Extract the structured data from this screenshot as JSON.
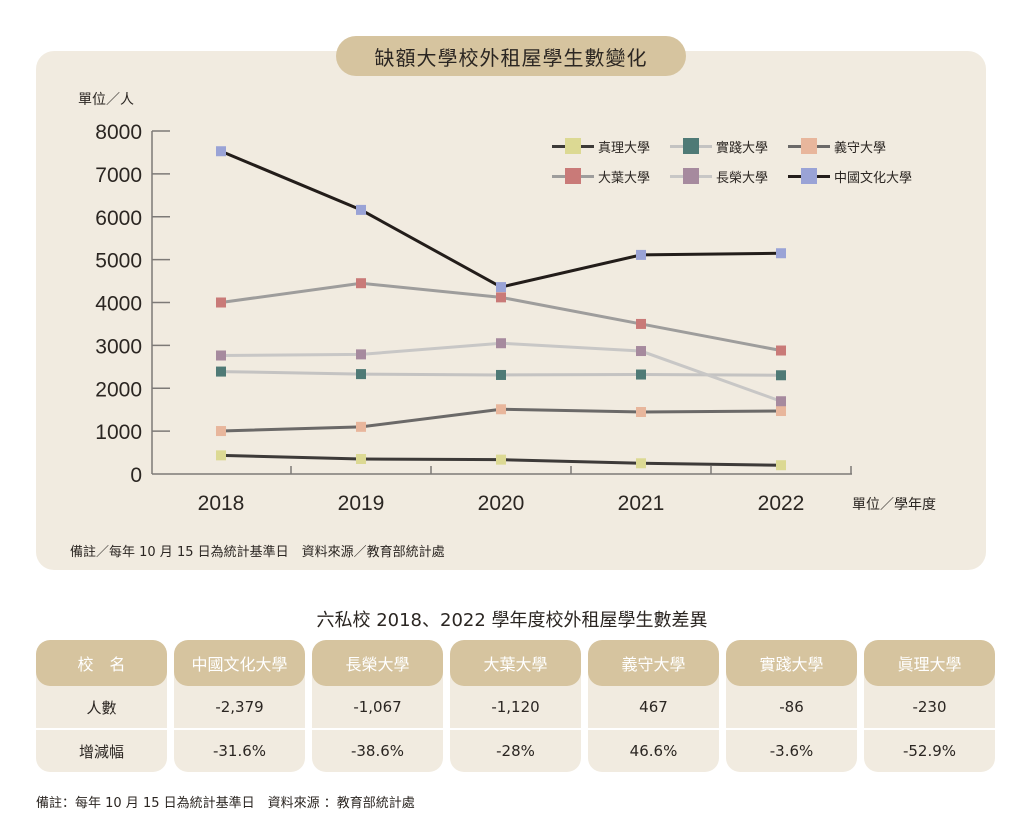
{
  "chart_title": "缺額大學校外租屋學生數變化",
  "y_unit": "單位／人",
  "x_unit": "單位／學年度",
  "note": "備註／每年 10 月 15 日為統計基準日　資料來源／教育部統計處",
  "chart_data": {
    "type": "line",
    "title": "缺額大學校外租屋學生數變化",
    "xlabel": "單位／學年度",
    "ylabel": "單位／人",
    "x": [
      "2018",
      "2019",
      "2020",
      "2021",
      "2022"
    ],
    "ylim": [
      0,
      8000
    ],
    "yticks": [
      "0",
      "1000",
      "2000",
      "3000",
      "4000",
      "5000",
      "6000",
      "7000",
      "8000"
    ],
    "grid": false,
    "legend_position": "top-right",
    "series": [
      {
        "name": "真理大學",
        "values": [
          435,
          350,
          335,
          250,
          205
        ],
        "marker_color": "#dcd993",
        "line_color": "#3d3a38"
      },
      {
        "name": "實踐大學",
        "values": [
          2389,
          2330,
          2310,
          2320,
          2303
        ],
        "marker_color": "#4f7a76",
        "line_color": "#c4c3c2"
      },
      {
        "name": "義守大學",
        "values": [
          1002,
          1100,
          1510,
          1446,
          1469
        ],
        "marker_color": "#e8b69c",
        "line_color": "#6b6968"
      },
      {
        "name": "大葉大學",
        "values": [
          4000,
          4450,
          4120,
          3500,
          2880
        ],
        "marker_color": "#c97a78",
        "line_color": "#9e9d9c"
      },
      {
        "name": "長榮大學",
        "values": [
          2764,
          2790,
          3050,
          2868,
          1697
        ],
        "marker_color": "#a68a9e",
        "line_color": "#c8c7c6"
      },
      {
        "name": "中國文化大學",
        "values": [
          7528,
          6160,
          4360,
          5110,
          5149
        ],
        "marker_color": "#9aa3d6",
        "line_color": "#231d1a"
      }
    ]
  },
  "table": {
    "title": "六私校 2018、2022 學年度校外租屋學生數差異",
    "row_header": {
      "label": "校　名",
      "rows": [
        "人數",
        "增減幅"
      ]
    },
    "columns": [
      {
        "name": "中國文化大學",
        "count": "-2,379",
        "change": "-31.6%"
      },
      {
        "name": "長榮大學",
        "count": "-1,067",
        "change": "-38.6%"
      },
      {
        "name": "大葉大學",
        "count": "-1,120",
        "change": "-28%"
      },
      {
        "name": "義守大學",
        "count": "467",
        "change": "46.6%"
      },
      {
        "name": "實踐大學",
        "count": "-86",
        "change": "-3.6%"
      },
      {
        "name": "眞理大學",
        "count": "-230",
        "change": "-52.9%"
      }
    ]
  },
  "footer": "備註：每年 10 月 15 日為統計基準日　資料來源 ：教育部統計處"
}
